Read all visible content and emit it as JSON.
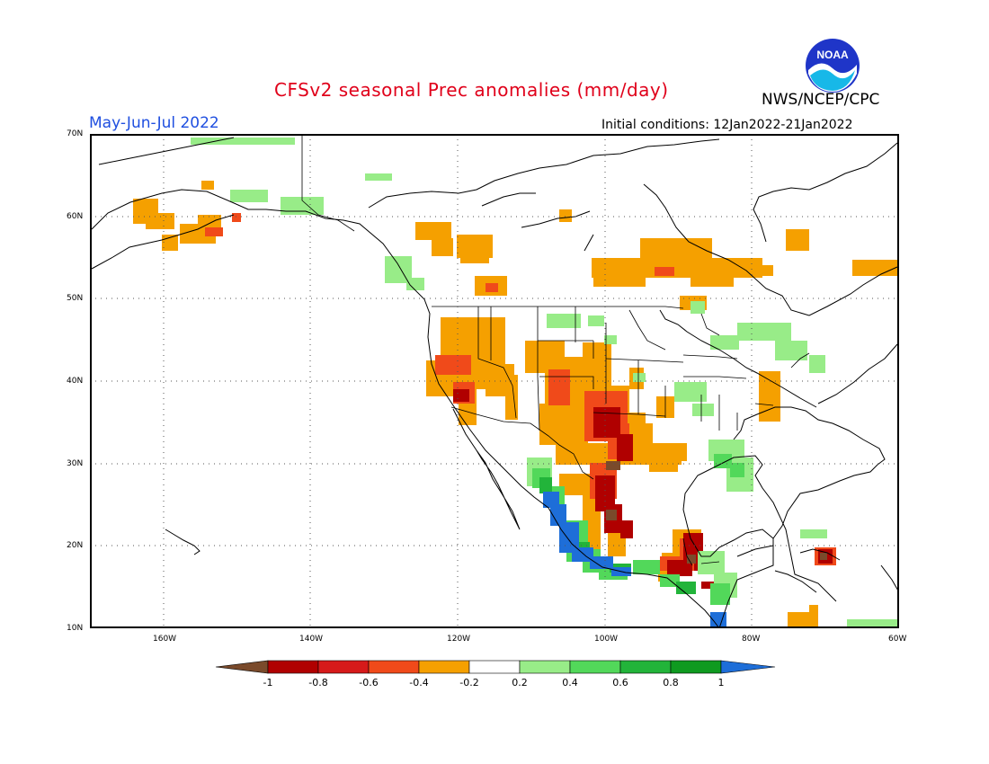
{
  "header": {
    "title": "CFSv2 seasonal Prec anomalies (mm/day)",
    "period": "May-Jun-Jul 2022",
    "initial_conditions": "Initial conditions: 12Jan2022-21Jan2022",
    "organization": "NWS/NCEP/CPC",
    "logo_text": "NOAA"
  },
  "map": {
    "lat_labels": [
      "70N",
      "60N",
      "50N",
      "40N",
      "30N",
      "20N",
      "10N"
    ],
    "lon_labels": [
      "160W",
      "140W",
      "120W",
      "100W",
      "80W",
      "60W"
    ],
    "grid": "dotted"
  },
  "colorbar": {
    "labels": [
      "-1",
      "-0.8",
      "-0.6",
      "-0.4",
      "-0.2",
      "0.2",
      "0.4",
      "0.6",
      "0.8",
      "1"
    ],
    "colors": [
      "#7a4a2b",
      "#b00000",
      "#d61a1a",
      "#f04a1a",
      "#f5a000",
      "#ffffff",
      "#98ec88",
      "#52d85a",
      "#22b43a",
      "#0f9a20",
      "#1e6ed8"
    ]
  }
}
